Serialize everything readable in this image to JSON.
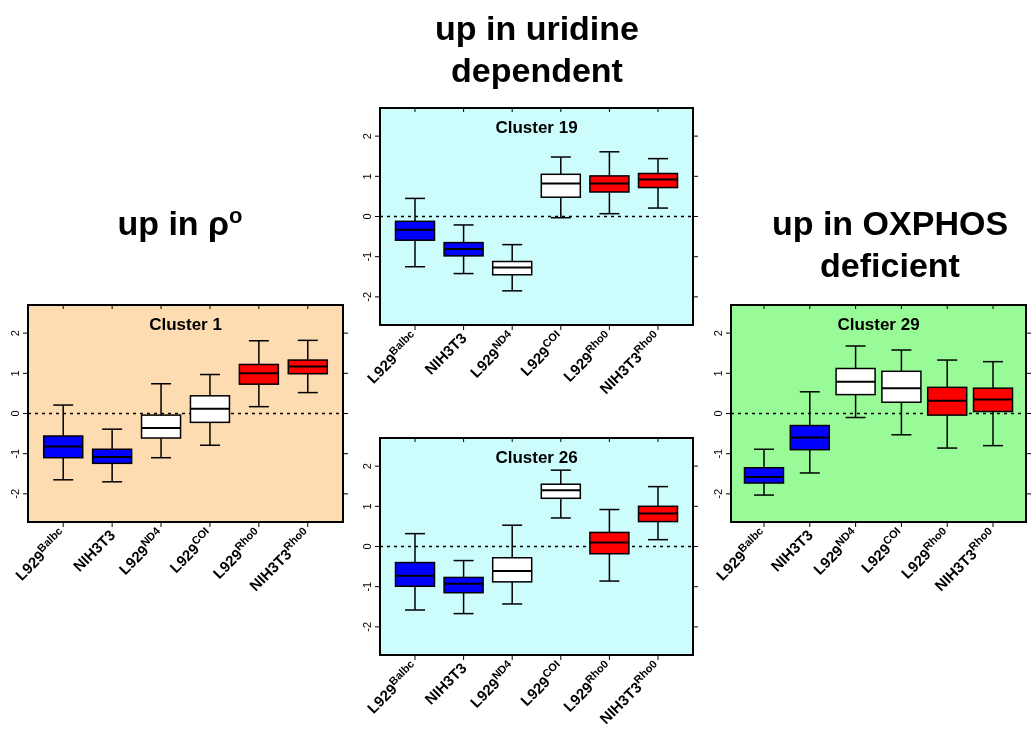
{
  "chart_data": [
    {
      "type": "box",
      "title": "Cluster 1",
      "annotations": [
        "up in ρ$^{o}$"
      ],
      "categories": [
        "L929$^{Balbc}$",
        "NIH3T3",
        "L929$^{ND4}$",
        "L929$^{COI}$",
        "L929$^{Rho0}$",
        "NIH3T3$^{Rho0}$"
      ],
      "colors": [
        "#0000ff",
        "#0000ff",
        "#ffffff",
        "#ffffff",
        "#ff0000",
        "#ff0000"
      ],
      "ylim": [
        -2.7,
        2.7
      ],
      "yticks": [
        -2,
        -1,
        0,
        1,
        2
      ],
      "ref_lines": [
        {
          "axis": "y",
          "value": 0,
          "line_style": "dotted"
        }
      ],
      "boxes": [
        {
          "low": -1.65,
          "q1": -1.1,
          "median": -0.82,
          "q3": -0.56,
          "high": 0.21
        },
        {
          "low": -1.7,
          "q1": -1.24,
          "median": -1.08,
          "q3": -0.89,
          "high": -0.39
        },
        {
          "low": -1.1,
          "q1": -0.61,
          "median": -0.36,
          "q3": -0.04,
          "high": 0.74
        },
        {
          "low": -0.79,
          "q1": -0.22,
          "median": 0.12,
          "q3": 0.44,
          "high": 0.97
        },
        {
          "low": 0.17,
          "q1": 0.73,
          "median": 1.0,
          "q3": 1.22,
          "high": 1.81
        },
        {
          "low": 0.52,
          "q1": 0.99,
          "median": 1.17,
          "q3": 1.33,
          "high": 1.82
        }
      ]
    },
    {
      "type": "box",
      "title": "Cluster 19",
      "annotations": [
        "up in uridine dependent"
      ],
      "categories": [
        "L929$^{Balbc}$",
        "NIH3T3",
        "L929$^{ND4}$",
        "L929$^{COI}$",
        "L929$^{Rho0}$",
        "NIH3T3$^{Rho0}$"
      ],
      "colors": [
        "#0000ff",
        "#0000ff",
        "#ffffff",
        "#ffffff",
        "#ff0000",
        "#ff0000"
      ],
      "ylim": [
        -2.7,
        2.7
      ],
      "yticks": [
        -2,
        -1,
        0,
        1,
        2
      ],
      "ref_lines": [
        {
          "axis": "y",
          "value": 0,
          "line_style": "dotted"
        }
      ],
      "boxes": [
        {
          "low": -1.25,
          "q1": -0.59,
          "median": -0.33,
          "q3": -0.12,
          "high": 0.45
        },
        {
          "low": -1.42,
          "q1": -0.98,
          "median": -0.81,
          "q3": -0.65,
          "high": -0.21
        },
        {
          "low": -1.85,
          "q1": -1.45,
          "median": -1.27,
          "q3": -1.12,
          "high": -0.7
        },
        {
          "low": -0.03,
          "q1": 0.48,
          "median": 0.82,
          "q3": 1.05,
          "high": 1.48
        },
        {
          "low": 0.07,
          "q1": 0.61,
          "median": 0.82,
          "q3": 1.01,
          "high": 1.61
        },
        {
          "low": 0.21,
          "q1": 0.72,
          "median": 0.92,
          "q3": 1.07,
          "high": 1.44
        }
      ]
    },
    {
      "type": "box",
      "title": "Cluster 26",
      "categories": [
        "L929$^{Balbc}$",
        "NIH3T3",
        "L929$^{ND4}$",
        "L929$^{COI}$",
        "L929$^{Rho0}$",
        "NIH3T3$^{Rho0}$"
      ],
      "colors": [
        "#0000ff",
        "#0000ff",
        "#ffffff",
        "#ffffff",
        "#ff0000",
        "#ff0000"
      ],
      "ylim": [
        -2.7,
        2.7
      ],
      "yticks": [
        -2,
        -1,
        0,
        1,
        2
      ],
      "ref_lines": [
        {
          "axis": "y",
          "value": 0,
          "line_style": "dotted"
        }
      ],
      "boxes": [
        {
          "low": -1.58,
          "q1": -0.99,
          "median": -0.73,
          "q3": -0.4,
          "high": 0.32
        },
        {
          "low": -1.67,
          "q1": -1.15,
          "median": -0.93,
          "q3": -0.77,
          "high": -0.35
        },
        {
          "low": -1.43,
          "q1": -0.88,
          "median": -0.61,
          "q3": -0.28,
          "high": 0.53
        },
        {
          "low": 0.71,
          "q1": 1.2,
          "median": 1.4,
          "q3": 1.55,
          "high": 1.9
        },
        {
          "low": -0.86,
          "q1": -0.18,
          "median": 0.1,
          "q3": 0.35,
          "high": 0.92
        },
        {
          "low": 0.17,
          "q1": 0.62,
          "median": 0.82,
          "q3": 1.0,
          "high": 1.49
        }
      ]
    },
    {
      "type": "box",
      "title": "Cluster 29",
      "annotations": [
        "up in OXPHOS deficient"
      ],
      "categories": [
        "L929$^{Balbc}$",
        "NIH3T3",
        "L929$^{ND4}$",
        "L929$^{COI}$",
        "L929$^{Rho0}$",
        "NIH3T3$^{Rho0}$"
      ],
      "colors": [
        "#0000ff",
        "#0000ff",
        "#ffffff",
        "#ffffff",
        "#ff0000",
        "#ff0000"
      ],
      "ylim": [
        -2.7,
        2.7
      ],
      "yticks": [
        -2,
        -1,
        0,
        1,
        2
      ],
      "ref_lines": [
        {
          "axis": "y",
          "value": 0,
          "line_style": "dotted"
        }
      ],
      "boxes": [
        {
          "low": -2.03,
          "q1": -1.73,
          "median": -1.58,
          "q3": -1.35,
          "high": -0.89
        },
        {
          "low": -1.48,
          "q1": -0.9,
          "median": -0.6,
          "q3": -0.3,
          "high": 0.54
        },
        {
          "low": -0.1,
          "q1": 0.47,
          "median": 0.79,
          "q3": 1.12,
          "high": 1.68
        },
        {
          "low": -0.53,
          "q1": 0.28,
          "median": 0.63,
          "q3": 1.05,
          "high": 1.58
        },
        {
          "low": -0.86,
          "q1": -0.04,
          "median": 0.32,
          "q3": 0.65,
          "high": 1.33
        },
        {
          "low": -0.8,
          "q1": 0.05,
          "median": 0.35,
          "q3": 0.63,
          "high": 1.29
        }
      ]
    }
  ]
}
